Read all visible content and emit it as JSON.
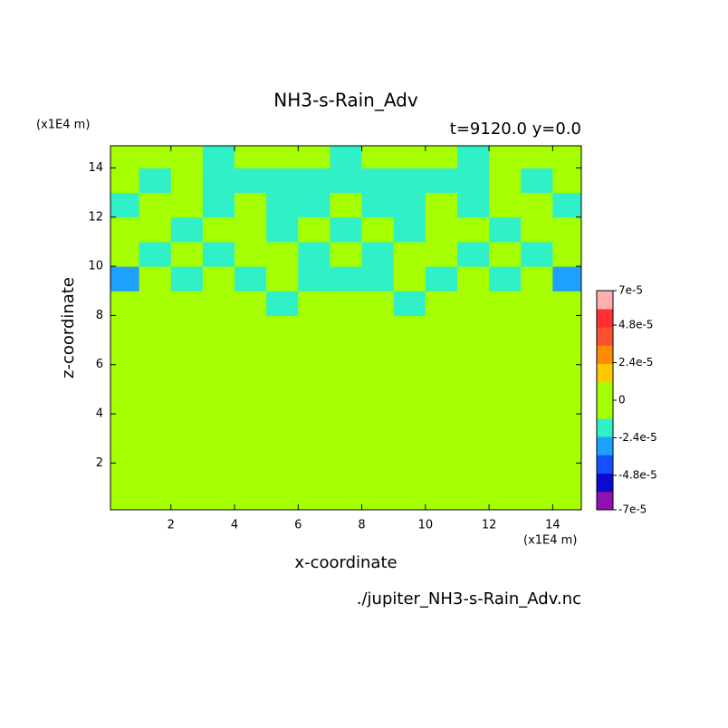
{
  "chart_data": {
    "type": "contour",
    "title": "NH3-s-Rain_Adv",
    "subtitle": "t=9120.0 y=0.0",
    "x_label": "x-coordinate",
    "y_label": "z-coordinate",
    "x_unit": "(x1E4 m)",
    "y_unit": "(x1E4 m)",
    "source": "./jupiter_NH3-s-Rain_Adv.nc",
    "xlim": [
      0.1,
      14.9
    ],
    "ylim": [
      0.1,
      14.9
    ],
    "xticks": [
      2,
      4,
      6,
      8,
      10,
      12,
      14
    ],
    "yticks": [
      2,
      4,
      6,
      8,
      10,
      12,
      14
    ],
    "x": [
      0.5,
      1.5,
      2.5,
      3.5,
      4.5,
      5.5,
      6.5,
      7.5,
      8.5,
      9.5,
      10.5,
      11.5,
      12.5,
      13.5,
      14.5
    ],
    "z": [
      0.5,
      1.5,
      2.5,
      3.5,
      4.5,
      5.5,
      6.5,
      7.5,
      8.5,
      9.5,
      10.5,
      11.5,
      12.5,
      13.5,
      14.5
    ],
    "values": [
      [
        0,
        0,
        0,
        0,
        0,
        0,
        0,
        0,
        0,
        0,
        0,
        0,
        0,
        0,
        0
      ],
      [
        0,
        0,
        0,
        0,
        0,
        0,
        0,
        0,
        0,
        0,
        0,
        0,
        0,
        0,
        0
      ],
      [
        0,
        0,
        0,
        0,
        0,
        0,
        0,
        0,
        0,
        0,
        0,
        0,
        0,
        0,
        0
      ],
      [
        0,
        0,
        0,
        0,
        0,
        0,
        0,
        0,
        0,
        0,
        0,
        0,
        0,
        0,
        0
      ],
      [
        0,
        0,
        0,
        0,
        0,
        0,
        0,
        0,
        0,
        0,
        0,
        0,
        0,
        0,
        0
      ],
      [
        0,
        0,
        0,
        0,
        0,
        0,
        0,
        0,
        0,
        0,
        0,
        0,
        0,
        0,
        0
      ],
      [
        0,
        0,
        0,
        0,
        0,
        0,
        0,
        0,
        0,
        0,
        0,
        0,
        0,
        0,
        0
      ],
      [
        0,
        0,
        0,
        0,
        0,
        0,
        0,
        0,
        0,
        0,
        0,
        0,
        0,
        0,
        0
      ],
      [
        0,
        0,
        0,
        0,
        0,
        -1.5e-05,
        0,
        0,
        0,
        -1.5e-05,
        0,
        0,
        0,
        0,
        0
      ],
      [
        -3e-05,
        0,
        -1.5e-05,
        0,
        -1.5e-05,
        0,
        -1.5e-05,
        -1.5e-05,
        -1.5e-05,
        0,
        -1.5e-05,
        0,
        -1.5e-05,
        0,
        -3e-05
      ],
      [
        0,
        -1.5e-05,
        0,
        -1.5e-05,
        0,
        0,
        -1.5e-05,
        0,
        -1.5e-05,
        0,
        0,
        -1.5e-05,
        0,
        -1.5e-05,
        0
      ],
      [
        0,
        0,
        -1.5e-05,
        0,
        0,
        -1.5e-05,
        0,
        -1.5e-05,
        0,
        -1.5e-05,
        0,
        0,
        -1.5e-05,
        0,
        0
      ],
      [
        -1.5e-05,
        0,
        0,
        -1.5e-05,
        0,
        -1.5e-05,
        -1.5e-05,
        0,
        -1.5e-05,
        -1.5e-05,
        0,
        -1.5e-05,
        0,
        0,
        -1.5e-05
      ],
      [
        0,
        -1.5e-05,
        0,
        -1.5e-05,
        -1.5e-05,
        -1.5e-05,
        -1.5e-05,
        -1.5e-05,
        -1.5e-05,
        -1.5e-05,
        -1.5e-05,
        -1.5e-05,
        0,
        -1.5e-05,
        0
      ],
      [
        0,
        0,
        0,
        -1.5e-05,
        0,
        0,
        0,
        -1.5e-05,
        0,
        0,
        0,
        -1.5e-05,
        0,
        0,
        0
      ]
    ],
    "levels": [
      -7e-05,
      -6e-05,
      -4.8e-05,
      -3.6e-05,
      -2.4e-05,
      -1.2e-05,
      0,
      1.2e-05,
      2.4e-05,
      3.6e-05,
      4.8e-05,
      6e-05,
      7e-05
    ],
    "colors": [
      "#9010b0",
      "#0a0ad0",
      "#1450ff",
      "#1ea0ff",
      "#30f0c8",
      "#a5ff00",
      "#a5ff00",
      "#ffc800",
      "#ff8c00",
      "#ff5030",
      "#ff3030",
      "#ffafaf"
    ],
    "clim": [
      -7e-05,
      7e-05
    ],
    "cticks": [
      {
        "value": 7e-05,
        "label": "7e-5"
      },
      {
        "value": 4.8e-05,
        "label": "4.8e-5"
      },
      {
        "value": 2.4e-05,
        "label": "2.4e-5"
      },
      0,
      {
        "value": -2.4e-05,
        "label": "-2.4e-5"
      },
      {
        "value": -4.8e-05,
        "label": "-4.8e-5"
      },
      {
        "value": -7e-05,
        "label": "-7e-5"
      }
    ]
  }
}
